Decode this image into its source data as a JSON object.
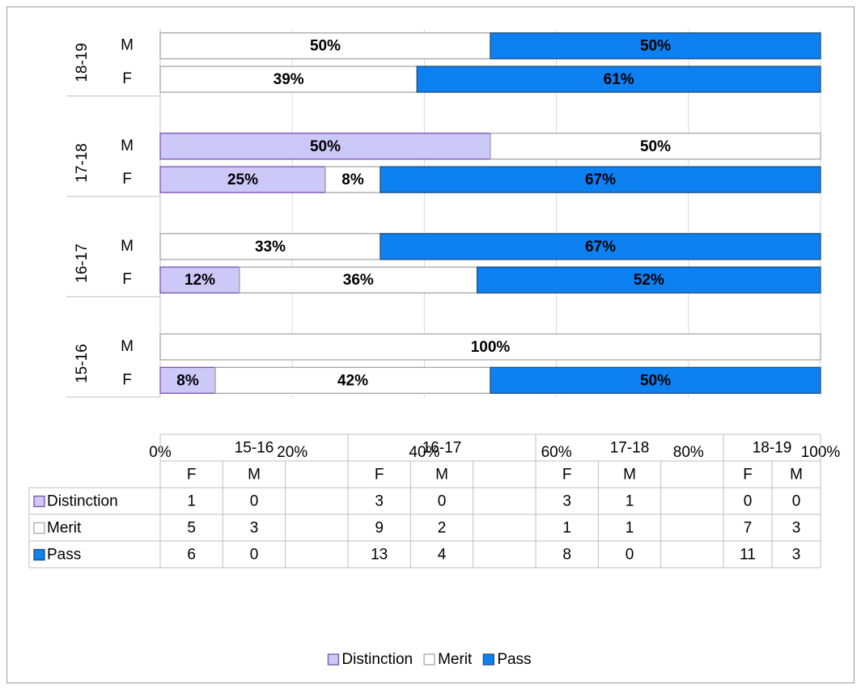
{
  "chart_data": {
    "type": "stacked_bar_horizontal",
    "category_groups": [
      "15-16",
      "16-17",
      "17-18",
      "18-19"
    ],
    "categories": [
      "F",
      "M",
      null,
      "F",
      "M",
      null,
      "F",
      "M",
      null,
      "F",
      "M"
    ],
    "series": [
      {
        "name": "Distinction",
        "color": "#ccc8f8",
        "border": "#7a4fb0",
        "values": [
          8.33,
          0,
          null,
          12,
          0,
          null,
          25,
          50,
          null,
          0,
          0
        ],
        "value_labels": [
          "8%",
          null,
          null,
          "12%",
          null,
          null,
          "25%",
          "50%",
          null,
          null,
          null
        ],
        "counts": [
          1,
          0,
          null,
          3,
          0,
          null,
          3,
          1,
          null,
          0,
          0
        ]
      },
      {
        "name": "Merit",
        "color": "#ffffff",
        "border": "#a6a6a6",
        "values": [
          41.67,
          100,
          null,
          36,
          33.33,
          null,
          8.33,
          50,
          null,
          38.89,
          50
        ],
        "value_labels": [
          "42%",
          "100%",
          null,
          "36%",
          "33%",
          null,
          "8%",
          "50%",
          null,
          "39%",
          "50%"
        ],
        "counts": [
          5,
          3,
          null,
          9,
          2,
          null,
          1,
          1,
          null,
          7,
          3
        ]
      },
      {
        "name": "Pass",
        "color": "#0d80f2",
        "border": "#1f4e79",
        "values": [
          50,
          0,
          null,
          52,
          66.67,
          null,
          66.67,
          0,
          null,
          61.11,
          50
        ],
        "value_labels": [
          "50%",
          null,
          null,
          "52%",
          "67%",
          null,
          "67%",
          null,
          null,
          "61%",
          "50%"
        ],
        "counts": [
          6,
          0,
          null,
          13,
          4,
          null,
          8,
          0,
          null,
          11,
          3
        ]
      }
    ],
    "xlim": [
      0,
      100
    ],
    "xticks": [
      {
        "value": 0,
        "label": "0%"
      },
      {
        "value": 20,
        "label": "20%"
      },
      {
        "value": 40,
        "label": "40%"
      },
      {
        "value": 60,
        "label": "60%"
      },
      {
        "value": 80,
        "label": "80%"
      },
      {
        "value": 100,
        "label": "100%"
      }
    ],
    "grid": true,
    "legend": "bottom"
  }
}
